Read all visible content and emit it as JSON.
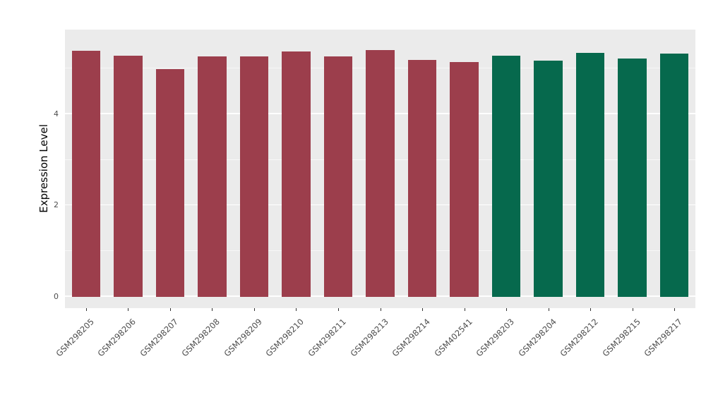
{
  "chart_data": {
    "type": "bar",
    "title": "",
    "xlabel": "",
    "ylabel": "Expression Level",
    "categories": [
      "GSM298205",
      "GSM298206",
      "GSM298207",
      "GSM298208",
      "GSM298209",
      "GSM298210",
      "GSM298211",
      "GSM298213",
      "GSM298214",
      "GSM402541",
      "GSM298203",
      "GSM298204",
      "GSM298212",
      "GSM298215",
      "GSM298217"
    ],
    "values": [
      5.39,
      5.28,
      4.99,
      5.26,
      5.27,
      5.37,
      5.27,
      5.41,
      5.19,
      5.14,
      5.28,
      5.17,
      5.34,
      5.21,
      5.33
    ],
    "bar_colors": [
      "#9C3E4C",
      "#9C3E4C",
      "#9C3E4C",
      "#9C3E4C",
      "#9C3E4C",
      "#9C3E4C",
      "#9C3E4C",
      "#9C3E4C",
      "#9C3E4C",
      "#9C3E4C",
      "#06694D",
      "#06694D",
      "#06694D",
      "#06694D",
      "#06694D"
    ],
    "groups": [
      {
        "name": "maroon-group",
        "color": "#9C3E4C",
        "categories_count": 10
      },
      {
        "name": "green-group",
        "color": "#06694D",
        "categories_count": 5
      }
    ],
    "ylim": [
      -0.25,
      5.85
    ],
    "yticks": [
      0,
      2,
      4
    ],
    "minor_yticks": [
      1,
      3,
      5
    ],
    "grid": true,
    "legend_position": "none",
    "panel_background": "#EBEBEB",
    "gridline_color": "#FFFFFF",
    "tick_label_color": "#4D4D4D",
    "bar_width_fraction": 0.68
  }
}
